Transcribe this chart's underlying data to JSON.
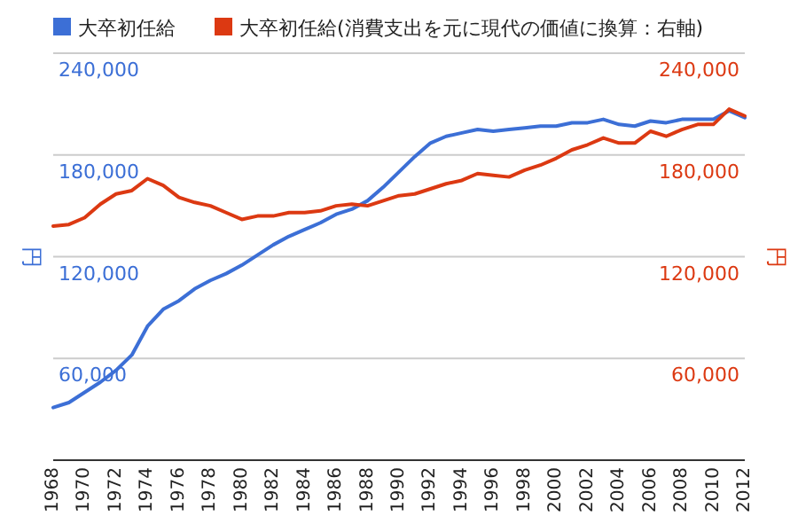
{
  "chart_data": {
    "type": "line",
    "legend": "top",
    "grid": "y",
    "ylabel": "円",
    "y2label": "円",
    "x": [
      1968,
      1969,
      1970,
      1971,
      1972,
      1973,
      1974,
      1975,
      1976,
      1977,
      1978,
      1979,
      1980,
      1981,
      1982,
      1983,
      1984,
      1985,
      1986,
      1987,
      1988,
      1989,
      1990,
      1991,
      1992,
      1993,
      1994,
      1995,
      1996,
      1997,
      1998,
      1999,
      2000,
      2001,
      2002,
      2003,
      2004,
      2005,
      2006,
      2007,
      2008,
      2009,
      2010,
      2011,
      2012
    ],
    "xlim": [
      1968,
      2012
    ],
    "xticks": [
      1968,
      1970,
      1972,
      1974,
      1976,
      1978,
      1980,
      1982,
      1984,
      1986,
      1988,
      1990,
      1992,
      1994,
      1996,
      1998,
      2000,
      2002,
      2004,
      2006,
      2008,
      2010,
      2012
    ],
    "ylim": [
      0,
      240000
    ],
    "yticks": [
      {
        "value": 60000,
        "label": "60,000"
      },
      {
        "value": 120000,
        "label": "120,000"
      },
      {
        "value": 180000,
        "label": "180,000"
      },
      {
        "value": 240000,
        "label": "240,000"
      }
    ],
    "y2lim": [
      0,
      240000
    ],
    "y2ticks": [
      {
        "value": 60000,
        "label": "60,000"
      },
      {
        "value": 120000,
        "label": "120,000"
      },
      {
        "value": 180000,
        "label": "180,000"
      },
      {
        "value": 240000,
        "label": "240,000"
      }
    ],
    "series": [
      {
        "name": "大卒初任給",
        "color": "#3c6fd6",
        "values": [
          31000,
          34000,
          40000,
          46000,
          53000,
          62000,
          79000,
          89000,
          94000,
          101000,
          106000,
          110000,
          115000,
          121000,
          127000,
          132000,
          136000,
          140000,
          145000,
          148000,
          153000,
          161000,
          170000,
          179000,
          187000,
          191000,
          193000,
          195000,
          194000,
          195000,
          196000,
          197000,
          197000,
          199000,
          199000,
          201000,
          198000,
          197000,
          200000,
          199000,
          201000,
          201000,
          201000,
          206000,
          202000
        ]
      },
      {
        "name": "大卒初任給(消費支出を元に現代の価値に換算：右軸)",
        "color": "#dc3912",
        "axis": "y2",
        "values": [
          138000,
          139000,
          143000,
          151000,
          157000,
          159000,
          166000,
          162000,
          155000,
          152000,
          150000,
          146000,
          142000,
          144000,
          144000,
          146000,
          146000,
          147000,
          150000,
          151000,
          150000,
          153000,
          156000,
          157000,
          160000,
          163000,
          165000,
          169000,
          168000,
          167000,
          171000,
          174000,
          178000,
          183000,
          186000,
          190000,
          187000,
          187000,
          194000,
          191000,
          195000,
          198000,
          198000,
          207000,
          203000
        ]
      }
    ]
  }
}
